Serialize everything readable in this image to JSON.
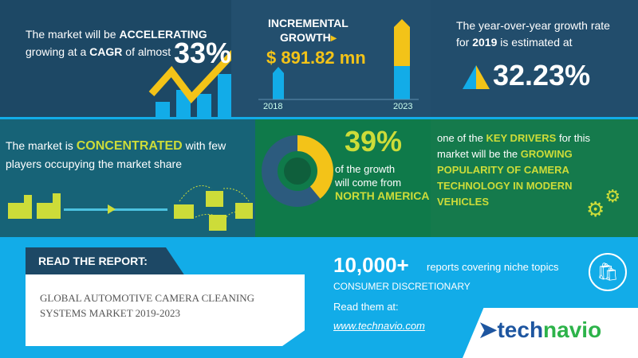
{
  "colors": {
    "yellow": "#f3c318",
    "lime": "#cddc39",
    "blue": "#12ace8",
    "navy": "#1f4a68",
    "green": "#0f7a4a",
    "teal": "#176377"
  },
  "cagr": {
    "pre1": "The market will be ",
    "bold1": "ACCELERATING",
    "pre2": "growing at a ",
    "bold2": "CAGR",
    "post2": " of almost",
    "value": "33%"
  },
  "incremental": {
    "label1": "INCREMENTAL",
    "label2": "GROWTH",
    "value": "$ 891.82 mn",
    "year_start": "2018",
    "year_end": "2023"
  },
  "yoy": {
    "line1": "The year-over-year growth rate",
    "pre2": "for ",
    "bold2": "2019",
    "post2": " is estimated at",
    "value": "32.23%"
  },
  "concentration": {
    "pre": "The market is ",
    "bold": "CONCENTRATED",
    "post": " with few",
    "line2": "players occupying the market share"
  },
  "region": {
    "value": "39%",
    "line1": "of the growth",
    "line2": "will come from",
    "region": "NORTH AMERICA",
    "share_percent": 39
  },
  "drivers": {
    "pre": "one of the ",
    "bold1": "KEY DRIVERS",
    "mid": " for this",
    "line2": "market will be the ",
    "bold2": "GROWING",
    "line3": "POPULARITY OF CAMERA",
    "line4": "TECHNOLOGY IN MODERN",
    "line5": "VEHICLES"
  },
  "report": {
    "label": "READ THE REPORT:",
    "title1": "GLOBAL AUTOMOTIVE CAMERA CLEANING",
    "title2": "SYSTEMS MARKET 2019-2023"
  },
  "footer": {
    "count": "10,000+",
    "count_text": "reports covering niche topics",
    "category": "CONSUMER DISCRETIONARY",
    "read": "Read them at:",
    "link": "www.technavio.com",
    "logo_a": "tech",
    "logo_b": "navio"
  }
}
